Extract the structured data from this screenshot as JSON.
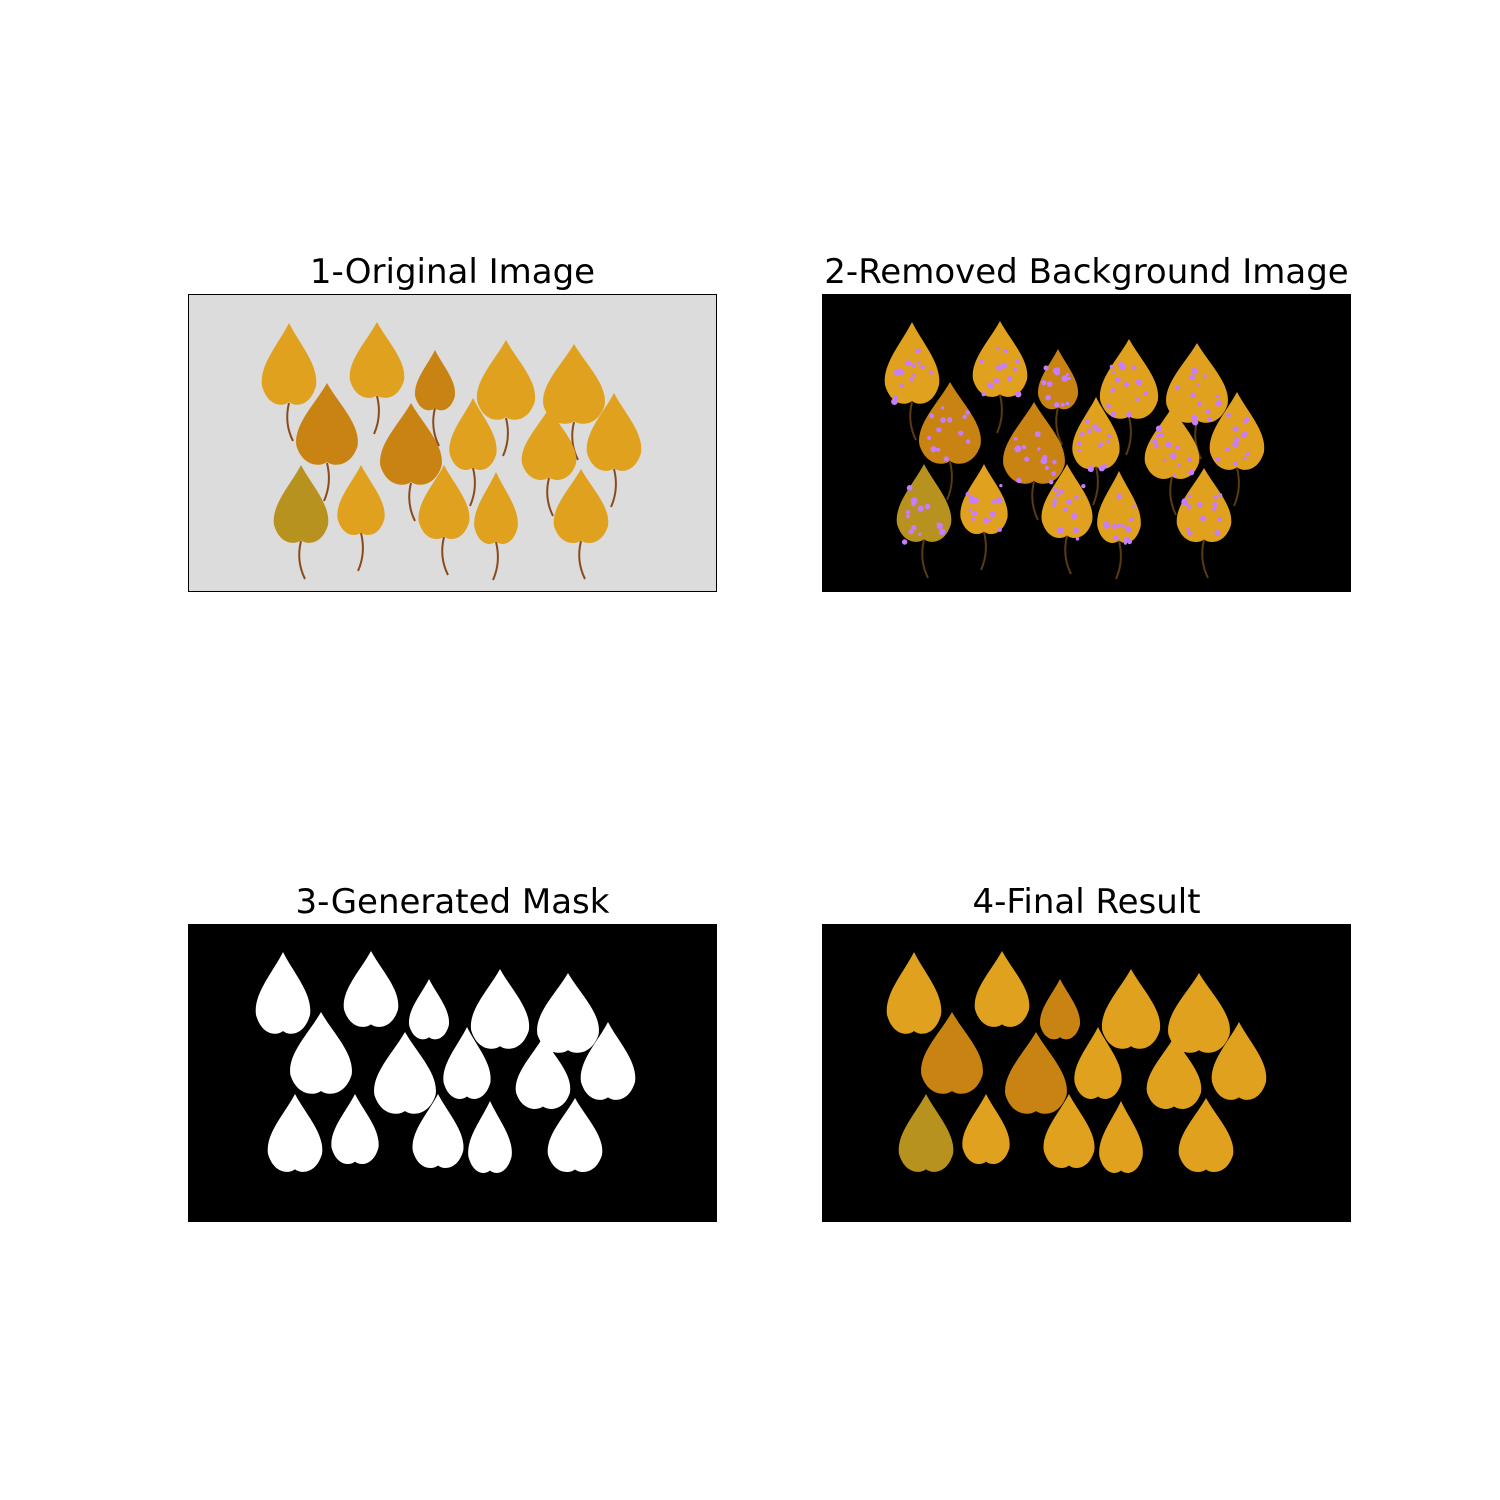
{
  "figure": {
    "background": "#ffffff",
    "panels": [
      {
        "id": "original",
        "title": "1-Original Image",
        "background": "#dcdcdc",
        "style": "photo"
      },
      {
        "id": "removed",
        "title": "2-Removed Background Image",
        "background": "#000000",
        "style": "speckle"
      },
      {
        "id": "mask",
        "title": "3-Generated Mask",
        "background": "#000000",
        "style": "mask"
      },
      {
        "id": "final",
        "title": "4-Final Result",
        "background": "#000000",
        "style": "clean"
      }
    ]
  },
  "colors": {
    "leaf": "#e0a11e",
    "leaf_dark": "#c98312",
    "leaf_olive": "#b8921e",
    "stem": "#8a4a1c",
    "speckle": "#c77dff",
    "mask": "#ffffff"
  }
}
